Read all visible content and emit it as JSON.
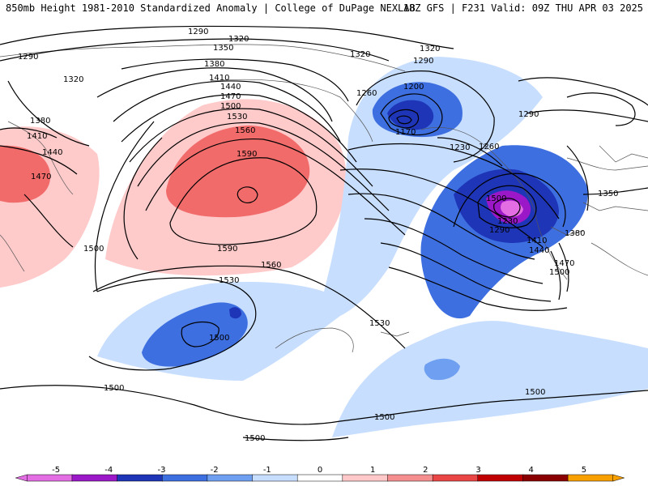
{
  "header": {
    "left_title": "850mb Height 1981-2010 Standardized Anomaly | College of DuPage NEXLAB",
    "right_title": "18Z GFS | F231 Valid: 09Z THU APR 03 2025"
  },
  "contour_labels": [
    "1290",
    "1320",
    "1290",
    "1320",
    "1350",
    "1320",
    "1380",
    "1410",
    "1440",
    "1470",
    "1500",
    "1530",
    "1560",
    "1590",
    "1380",
    "1410",
    "1440",
    "1470",
    "1500",
    "1590",
    "1560",
    "1530",
    "1500",
    "1500",
    "1500",
    "1500",
    "1500",
    "1260",
    "1200",
    "1170",
    "1230",
    "1290",
    "1260",
    "1290",
    "1320",
    "1350",
    "1230",
    "1290",
    "1380",
    "1410",
    "1440",
    "1470",
    "1500",
    "1530",
    "1500"
  ],
  "colorbar": {
    "labels": [
      "-5",
      "-4",
      "-3",
      "-2",
      "-1",
      "0",
      "1",
      "2",
      "3",
      "4",
      "5"
    ],
    "colors": [
      "#e36de3",
      "#9a18c8",
      "#1e35b8",
      "#3e6fe0",
      "#6f9ff0",
      "#c7deff",
      "#ffffff",
      "#ffc9c9",
      "#f58f8f",
      "#ea4646",
      "#c00000",
      "#8a0000",
      "#f7a000"
    ]
  }
}
